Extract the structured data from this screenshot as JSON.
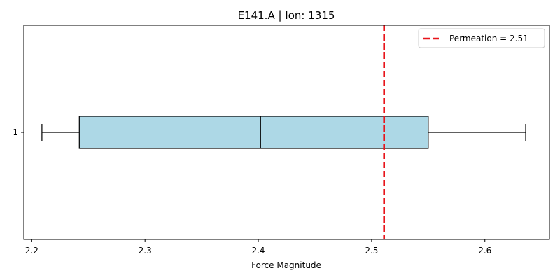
{
  "chart_data": {
    "type": "boxplot",
    "orientation": "horizontal",
    "title": "E141.A | Ion: 1315",
    "xlabel": "Force Magnitude",
    "ylabel": "",
    "xlim": [
      2.193,
      2.657
    ],
    "x_ticks": [
      2.2,
      2.3,
      2.4,
      2.5,
      2.6
    ],
    "x_tick_labels": [
      "2.2",
      "2.3",
      "2.4",
      "2.5",
      "2.6"
    ],
    "y_ticks": [
      1
    ],
    "y_tick_labels": [
      "1"
    ],
    "grid": false,
    "legend_position": "top-right",
    "box": {
      "category": "1",
      "whisker_low": 2.209,
      "q1": 2.242,
      "median": 2.402,
      "q3": 2.55,
      "whisker_high": 2.636,
      "fill_color": "#add8e6",
      "line_color": "#000000"
    },
    "reference_line": {
      "label": "Permeation = 2.51",
      "value": 2.511,
      "color": "#e8141a",
      "style": "dashed"
    }
  }
}
